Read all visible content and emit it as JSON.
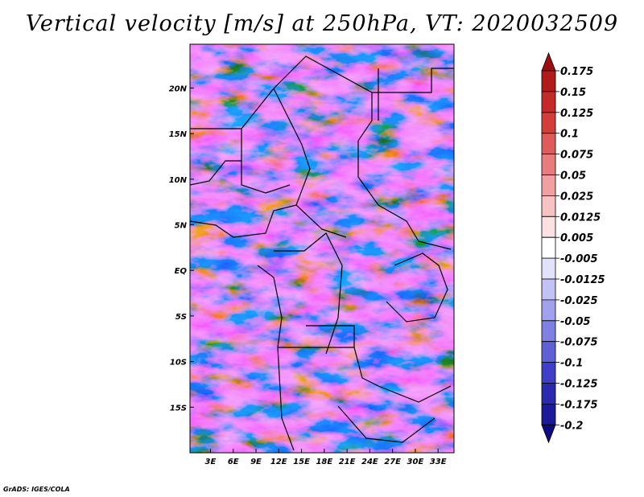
{
  "title": "Vertical velocity [m/s] at 250hPa, VT: 2020032509",
  "credit": "GrADS: IGES/COLA",
  "map": {
    "variable": "Vertical velocity",
    "units": "m/s",
    "level": "250hPa",
    "valid_time": "2020032509",
    "lat_labels": [
      "20N",
      "15N",
      "10N",
      "5N",
      "EQ",
      "5S",
      "10S",
      "15S"
    ],
    "lat_values": [
      20,
      15,
      10,
      5,
      0,
      -5,
      -10,
      -15
    ],
    "lon_labels": [
      "3E",
      "6E",
      "9E",
      "12E",
      "15E",
      "18E",
      "21E",
      "24E",
      "27E",
      "30E",
      "33E"
    ],
    "lon_values": [
      3,
      6,
      9,
      12,
      15,
      18,
      21,
      24,
      27,
      30,
      33
    ],
    "lat_range": [
      -20,
      24.8
    ],
    "lon_range": [
      0.3,
      35.1
    ]
  },
  "colorbar": {
    "labels": [
      "0.175",
      "0.15",
      "0.125",
      "0.1",
      "0.075",
      "0.05",
      "0.025",
      "0.0125",
      "0.005",
      "-0.005",
      "-0.0125",
      "-0.025",
      "-0.05",
      "-0.075",
      "-0.1",
      "-0.125",
      "-0.175",
      "-0.2"
    ],
    "colors": [
      "#9c0e12",
      "#b01c1c",
      "#c42a2a",
      "#d53c3c",
      "#df5a5a",
      "#e87c7c",
      "#f0a0a0",
      "#f6c2c2",
      "#fbe2e2",
      "#ffffff",
      "#e2e2fb",
      "#c2c2f4",
      "#a2a2ec",
      "#8080e2",
      "#6060d6",
      "#4040c6",
      "#2a2ab0",
      "#1a1a9a",
      "#0c0c80"
    ]
  }
}
